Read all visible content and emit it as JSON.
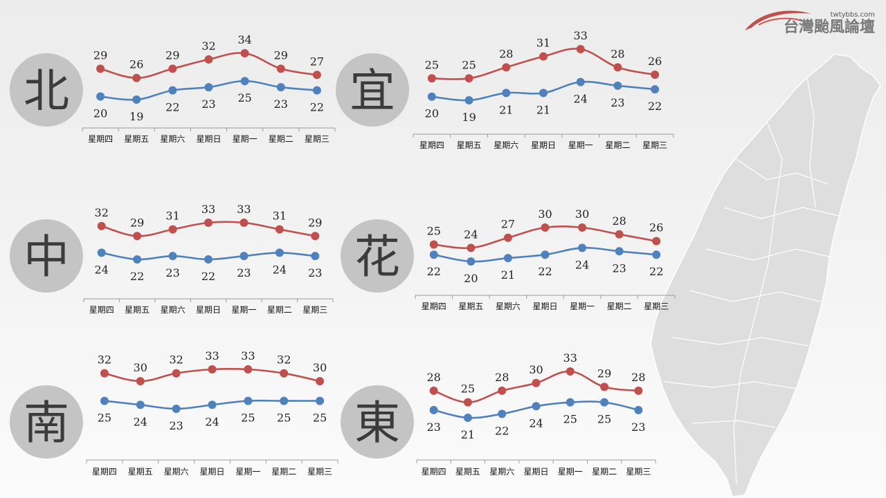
{
  "branding": {
    "site_url": "twtybbs.com",
    "site_name": "台灣颱風論壇"
  },
  "map": {
    "icon": "taiwan-map-icon"
  },
  "colors": {
    "high": "#c0504d",
    "low": "#4f81bd",
    "badge": "#c4c4c4"
  },
  "chart_data": [
    {
      "type": "line",
      "region": "北",
      "categories": [
        "星期四",
        "星期五",
        "星期六",
        "星期日",
        "星期一",
        "星期二",
        "星期三"
      ],
      "series": [
        {
          "values": [
            29,
            26,
            29,
            32,
            34,
            29,
            27
          ]
        },
        {
          "values": [
            20,
            19,
            22,
            23,
            25,
            23,
            22
          ]
        }
      ],
      "legend": "none",
      "grid": false
    },
    {
      "type": "line",
      "region": "宜",
      "categories": [
        "星期四",
        "星期五",
        "星期六",
        "星期日",
        "星期一",
        "星期二",
        "星期三"
      ],
      "series": [
        {
          "values": [
            25,
            25,
            28,
            31,
            33,
            28,
            26
          ]
        },
        {
          "values": [
            20,
            19,
            21,
            21,
            24,
            23,
            22
          ]
        }
      ],
      "legend": "none",
      "grid": false
    },
    {
      "type": "line",
      "region": "中",
      "categories": [
        "星期四",
        "星期五",
        "星期六",
        "星期日",
        "星期一",
        "星期二",
        "星期三"
      ],
      "series": [
        {
          "values": [
            32,
            29,
            31,
            33,
            33,
            31,
            29
          ]
        },
        {
          "values": [
            24,
            22,
            23,
            22,
            23,
            24,
            23
          ]
        }
      ],
      "legend": "none",
      "grid": false
    },
    {
      "type": "line",
      "region": "花",
      "categories": [
        "星期四",
        "星期五",
        "星期六",
        "星期日",
        "星期一",
        "星期二",
        "星期三"
      ],
      "series": [
        {
          "values": [
            25,
            24,
            27,
            30,
            30,
            28,
            26
          ]
        },
        {
          "values": [
            22,
            20,
            21,
            22,
            24,
            23,
            22
          ]
        }
      ],
      "legend": "none",
      "grid": false
    },
    {
      "type": "line",
      "region": "南",
      "categories": [
        "星期四",
        "星期五",
        "星期六",
        "星期日",
        "星期一",
        "星期二",
        "星期三"
      ],
      "series": [
        {
          "values": [
            32,
            30,
            32,
            33,
            33,
            32,
            30
          ]
        },
        {
          "values": [
            25,
            24,
            23,
            24,
            25,
            25,
            25
          ]
        }
      ],
      "legend": "none",
      "grid": false
    },
    {
      "type": "line",
      "region": "東",
      "categories": [
        "星期四",
        "星期五",
        "星期六",
        "星期日",
        "星期一",
        "星期二",
        "星期三"
      ],
      "series": [
        {
          "values": [
            28,
            25,
            28,
            30,
            33,
            29,
            28
          ]
        },
        {
          "values": [
            23,
            21,
            22,
            24,
            25,
            25,
            23
          ]
        }
      ],
      "legend": "none",
      "grid": false
    }
  ]
}
